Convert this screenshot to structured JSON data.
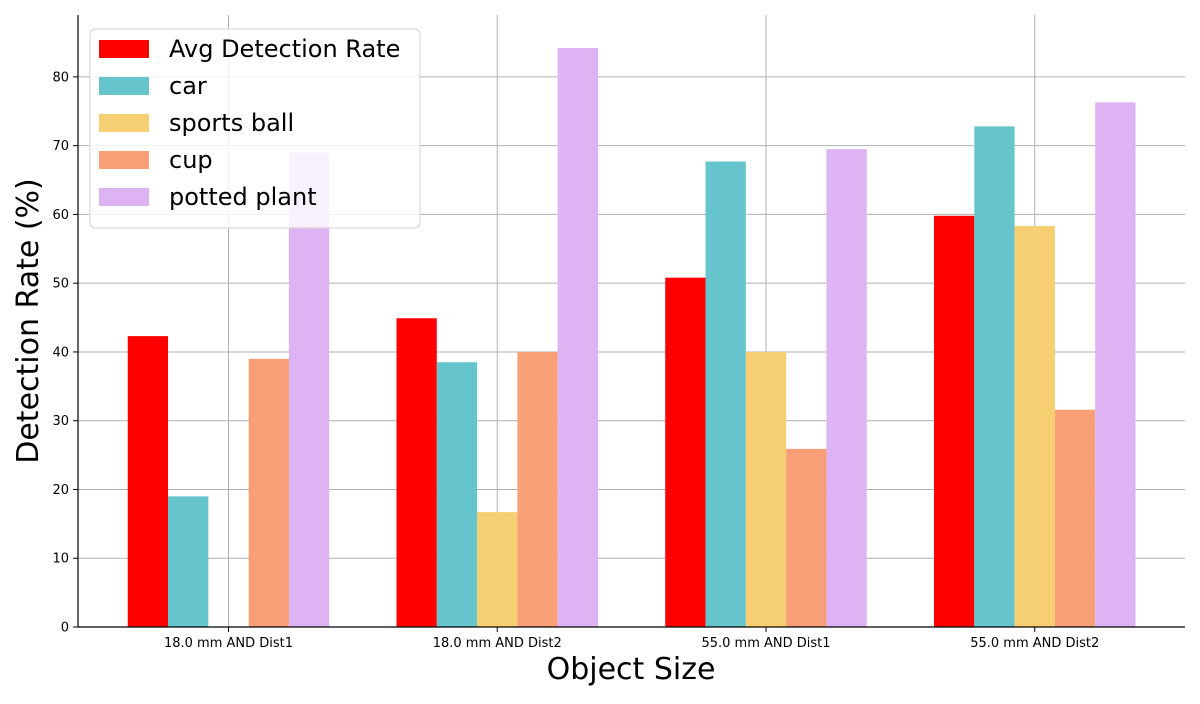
{
  "chart_data": {
    "type": "bar",
    "title": "",
    "xlabel": "Object Size",
    "ylabel": "Detection Rate (%)",
    "categories": [
      "18.0 mm AND Dist1",
      "18.0 mm AND Dist2",
      "55.0 mm AND Dist1",
      "55.0 mm AND Dist2"
    ],
    "series": [
      {
        "name": "Avg Detection Rate",
        "color": "#ff0000",
        "values": [
          42.3,
          44.9,
          50.8,
          59.8
        ]
      },
      {
        "name": "car",
        "color": "#66c4cc",
        "values": [
          19.0,
          38.5,
          67.7,
          72.8
        ]
      },
      {
        "name": "sports ball",
        "color": "#f6cf72",
        "values": [
          0,
          16.7,
          40.0,
          58.3
        ]
      },
      {
        "name": "cup",
        "color": "#f89f77",
        "values": [
          39.0,
          40.0,
          25.9,
          31.6
        ]
      },
      {
        "name": "potted plant",
        "color": "#ddb3f4",
        "values": [
          69.0,
          84.2,
          69.5,
          76.3
        ]
      }
    ],
    "ylim": [
      0,
      89
    ],
    "yticks": [
      0,
      10,
      20,
      30,
      40,
      50,
      60,
      70,
      80
    ],
    "grid": true,
    "legend_position": "top-left"
  }
}
